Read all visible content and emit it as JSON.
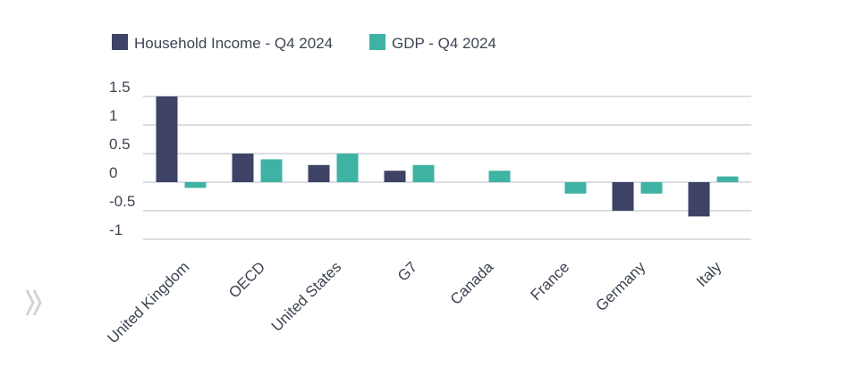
{
  "chart_data": {
    "type": "bar",
    "title": "",
    "xlabel": "",
    "ylabel": "",
    "categories": [
      "United Kingdom",
      "OECD",
      "United States",
      "G7",
      "Canada",
      "France",
      "Germany",
      "Italy"
    ],
    "series": [
      {
        "name": "Household Income - Q4 2024",
        "color": "#3d4266",
        "values": [
          1.5,
          0.5,
          0.3,
          0.2,
          0.0,
          0.0,
          -0.5,
          -0.6
        ]
      },
      {
        "name": "GDP - Q4 2024",
        "color": "#3fb3a3",
        "values": [
          -0.1,
          0.4,
          0.5,
          0.3,
          0.2,
          -0.2,
          -0.2,
          0.1
        ]
      }
    ],
    "ylim": [
      -1,
      1.5
    ],
    "yticks": [
      1.5,
      1,
      0.5,
      0,
      -0.5,
      -1
    ],
    "ytick_labels": [
      "1.5",
      "1",
      "0.5",
      "0",
      "-0.5",
      "-1"
    ],
    "grid": true,
    "legend_position": "top-left"
  },
  "colors": {
    "text": "#3d4451",
    "grid": "#b9bec8",
    "icon": "#d0d3d8"
  },
  "icons": {
    "corner": "double-chevron-icon"
  }
}
